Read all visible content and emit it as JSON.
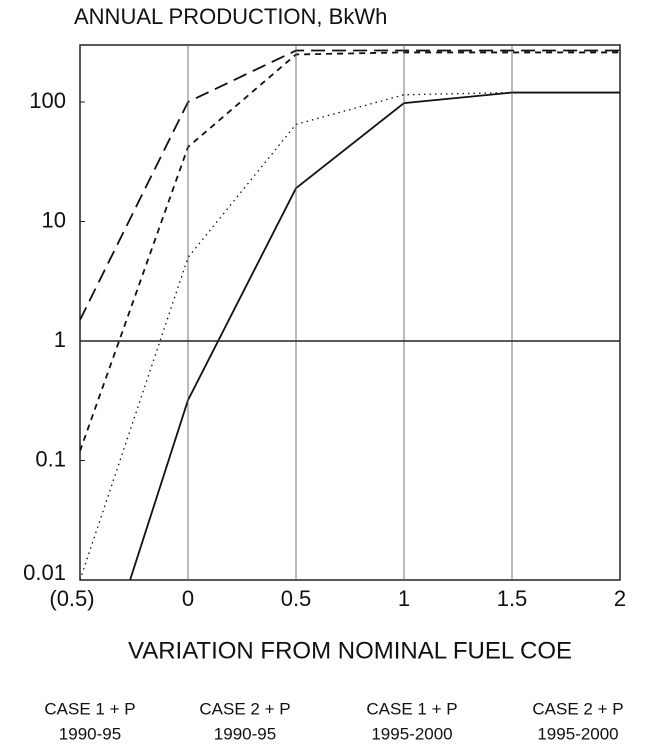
{
  "chart_data": {
    "type": "line",
    "title": "ANNUAL PRODUCTION, BkWh",
    "x_label": "VARIATION FROM NOMINAL FUEL COE",
    "x": [
      -0.5,
      0,
      0.5,
      1,
      1.5,
      2
    ],
    "series": [
      {
        "name": "CASE 1 + P",
        "period": "1990-95",
        "color": "#111111",
        "style": "solid",
        "values": [
          0.0005,
          0.32,
          19,
          98,
          120,
          120
        ]
      },
      {
        "name": "CASE 2 + P",
        "period": "1990-95",
        "color": "#111111",
        "style": "dotted",
        "values": [
          0.01,
          5,
          65,
          115,
          120,
          120
        ]
      },
      {
        "name": "CASE 1 + P",
        "period": "1995-2000",
        "color": "#111111",
        "style": "dashed",
        "values": [
          0.12,
          42,
          250,
          260,
          260,
          260
        ]
      },
      {
        "name": "CASE 2 + P",
        "period": "1995-2000",
        "color": "#111111",
        "style": "long-dashed",
        "values": [
          1.5,
          100,
          270,
          270,
          270,
          270
        ]
      }
    ],
    "xlim": [
      -0.5,
      2
    ],
    "xticks": [
      {
        "value": -0.5,
        "label": "(0.5)"
      },
      0,
      0.5,
      1,
      1.5,
      2
    ],
    "ylim": [
      0.01,
      300
    ],
    "yticks": [
      0.01,
      0.1,
      1,
      10,
      100
    ],
    "y_scale": "log",
    "x_grid": true,
    "reference_line": 1
  }
}
